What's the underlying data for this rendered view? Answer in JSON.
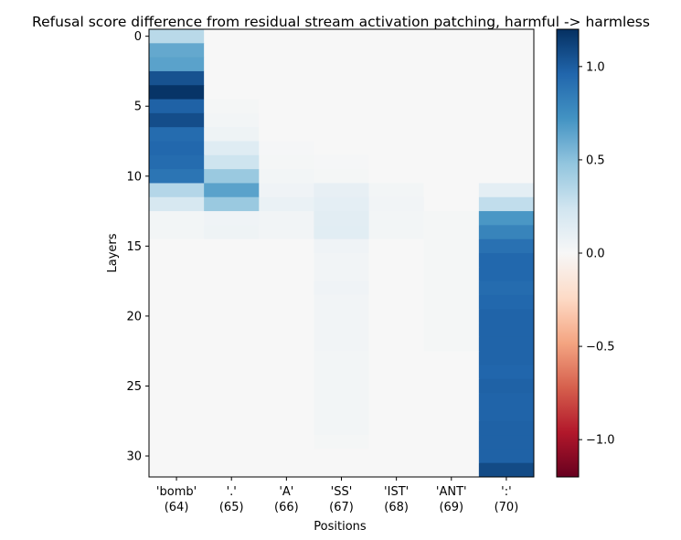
{
  "chart_data": {
    "type": "heatmap",
    "title": "Refusal score difference from residual stream activation patching, harmful -> harmless",
    "xlabel": "Positions",
    "ylabel": "Layers",
    "x_tick_labels": [
      [
        "'bomb'",
        "(64)"
      ],
      [
        "'.'",
        "(65)"
      ],
      [
        "'A'",
        "(66)"
      ],
      [
        "'SS'",
        "(67)"
      ],
      [
        "'IST'",
        "(68)"
      ],
      [
        "'ANT'",
        "(69)"
      ],
      [
        "':'",
        "(70)"
      ]
    ],
    "y_ticks": [
      0,
      5,
      10,
      15,
      20,
      25,
      30
    ],
    "y_tick_labels": [
      "0",
      "5",
      "10",
      "15",
      "20",
      "25",
      "30"
    ],
    "layers": 32,
    "colormap": "RdBu",
    "vmin": -1.2,
    "vmax": 1.2,
    "colorbar_ticks": [
      1.0,
      0.5,
      0.0,
      -0.5,
      -1.0
    ],
    "colorbar_tick_labels": [
      "1.0",
      "0.5",
      "0.0",
      "−0.5",
      "−1.0"
    ],
    "values": [
      [
        0.33,
        0.0,
        0.0,
        0.0,
        0.0,
        0.0,
        0.0
      ],
      [
        0.62,
        0.0,
        0.0,
        0.0,
        0.0,
        0.0,
        0.0
      ],
      [
        0.65,
        0.0,
        0.0,
        0.0,
        0.0,
        0.0,
        0.0
      ],
      [
        1.05,
        0.0,
        0.0,
        0.0,
        0.0,
        0.0,
        0.0
      ],
      [
        1.18,
        0.0,
        0.0,
        0.0,
        0.0,
        0.0,
        0.0
      ],
      [
        0.98,
        0.02,
        0.0,
        0.0,
        0.0,
        0.0,
        0.0
      ],
      [
        1.07,
        0.03,
        0.0,
        0.0,
        0.0,
        0.0,
        0.0
      ],
      [
        0.93,
        0.06,
        0.0,
        0.0,
        0.0,
        0.0,
        0.0
      ],
      [
        0.95,
        0.15,
        0.01,
        0.0,
        0.0,
        0.0,
        0.0
      ],
      [
        0.93,
        0.25,
        0.02,
        0.01,
        0.0,
        0.0,
        0.0
      ],
      [
        0.88,
        0.45,
        0.03,
        0.02,
        0.0,
        0.0,
        0.0
      ],
      [
        0.35,
        0.65,
        0.05,
        0.1,
        0.03,
        0.0,
        0.12
      ],
      [
        0.2,
        0.45,
        0.08,
        0.12,
        0.04,
        0.0,
        0.3
      ],
      [
        0.03,
        0.05,
        0.04,
        0.13,
        0.03,
        0.02,
        0.7
      ],
      [
        0.03,
        0.06,
        0.04,
        0.14,
        0.03,
        0.02,
        0.8
      ],
      [
        0.0,
        0.0,
        0.0,
        0.05,
        0.0,
        0.02,
        0.9
      ],
      [
        0.0,
        0.0,
        0.0,
        0.04,
        0.0,
        0.02,
        0.95
      ],
      [
        0.0,
        0.0,
        0.0,
        0.04,
        0.0,
        0.02,
        0.95
      ],
      [
        0.0,
        0.0,
        0.0,
        0.05,
        0.0,
        0.02,
        0.93
      ],
      [
        0.0,
        0.0,
        0.0,
        0.04,
        0.0,
        0.02,
        0.95
      ],
      [
        0.0,
        0.0,
        0.0,
        0.04,
        0.0,
        0.02,
        0.97
      ],
      [
        0.0,
        0.0,
        0.0,
        0.04,
        0.0,
        0.02,
        0.97
      ],
      [
        0.0,
        0.0,
        0.0,
        0.04,
        0.0,
        0.02,
        0.97
      ],
      [
        0.0,
        0.0,
        0.0,
        0.03,
        0.0,
        0.0,
        0.97
      ],
      [
        0.0,
        0.0,
        0.0,
        0.03,
        0.0,
        0.0,
        0.96
      ],
      [
        0.0,
        0.0,
        0.0,
        0.03,
        0.0,
        0.0,
        0.98
      ],
      [
        0.0,
        0.0,
        0.0,
        0.03,
        0.0,
        0.0,
        0.97
      ],
      [
        0.0,
        0.0,
        0.0,
        0.03,
        0.0,
        0.0,
        0.97
      ],
      [
        0.0,
        0.0,
        0.0,
        0.03,
        0.0,
        0.0,
        0.98
      ],
      [
        0.0,
        0.0,
        0.0,
        0.02,
        0.0,
        0.0,
        0.98
      ],
      [
        0.0,
        0.0,
        0.0,
        0.0,
        0.0,
        0.0,
        0.98
      ],
      [
        0.0,
        0.0,
        0.0,
        0.0,
        0.0,
        0.0,
        1.08
      ]
    ]
  }
}
